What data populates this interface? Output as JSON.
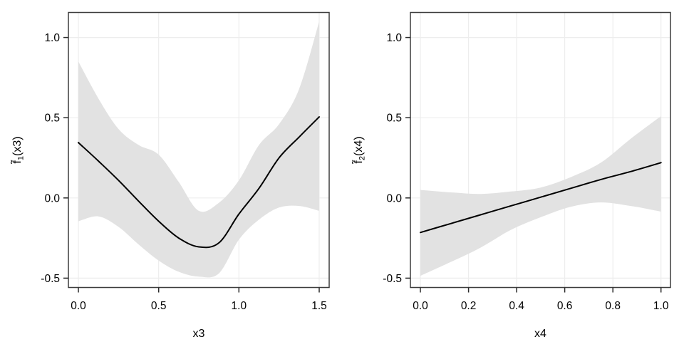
{
  "figure": {
    "background": "#ffffff",
    "band_color": "#e2e2e2",
    "grid_color": "#ededed",
    "frame_color": "#3d3d3d",
    "tick_color": "#2b2b2b",
    "line_color": "#000000",
    "text_color": "#000000"
  },
  "chart_data": [
    {
      "type": "line",
      "panel": "left",
      "title": "",
      "xlabel": "x3",
      "ylabel": {
        "base": "f̃",
        "sub": "1",
        "rest": "(x3)"
      },
      "grid": true,
      "legend": "none",
      "xlim": [
        -0.062,
        1.562
      ],
      "ylim": [
        -0.558,
        1.156
      ],
      "xticks": {
        "values": [
          0,
          0.5,
          1.0,
          1.5
        ],
        "labels": [
          "0.0",
          "0.5",
          "1.0",
          "1.5"
        ]
      },
      "yticks": {
        "values": [
          -0.5,
          0,
          0.5,
          1.0
        ],
        "labels": [
          "-0.5",
          "0.0",
          "0.5",
          "1.0"
        ]
      },
      "x": [
        0,
        0.125,
        0.25,
        0.375,
        0.5,
        0.625,
        0.75,
        0.875,
        1.0,
        1.125,
        1.25,
        1.375,
        1.5
      ],
      "series": [
        {
          "name": "estimate",
          "values": [
            0.345,
            0.23,
            0.11,
            -0.02,
            -0.145,
            -0.25,
            -0.305,
            -0.28,
            -0.1,
            0.06,
            0.25,
            0.38,
            0.505
          ]
        },
        {
          "name": "ci_upper",
          "values": [
            0.85,
            0.62,
            0.43,
            0.33,
            0.27,
            0.1,
            -0.08,
            -0.03,
            0.11,
            0.33,
            0.46,
            0.68,
            1.1
          ]
        },
        {
          "name": "ci_lower",
          "values": [
            -0.145,
            -0.115,
            -0.18,
            -0.29,
            -0.39,
            -0.46,
            -0.49,
            -0.47,
            -0.26,
            -0.135,
            -0.06,
            -0.05,
            -0.08
          ]
        }
      ]
    },
    {
      "type": "line",
      "panel": "right",
      "title": "",
      "xlabel": "x4",
      "ylabel": {
        "base": "f̃",
        "sub": "2",
        "rest": "(x4)"
      },
      "grid": true,
      "legend": "none",
      "xlim": [
        -0.0415,
        1.0394
      ],
      "ylim": [
        -0.558,
        1.156
      ],
      "xticks": {
        "values": [
          0,
          0.2,
          0.4,
          0.6,
          0.8,
          1.0
        ],
        "labels": [
          "0.0",
          "0.2",
          "0.4",
          "0.6",
          "0.8",
          "1.0"
        ]
      },
      "yticks": {
        "values": [
          -0.5,
          0,
          0.5,
          1.0
        ],
        "labels": [
          "-0.5",
          "0.0",
          "0.5",
          "1.0"
        ]
      },
      "x": [
        0,
        0.125,
        0.25,
        0.375,
        0.5,
        0.625,
        0.75,
        0.875,
        1.0
      ],
      "series": [
        {
          "name": "estimate",
          "values": [
            -0.215,
            -0.16,
            -0.105,
            -0.05,
            0.005,
            0.06,
            0.115,
            0.165,
            0.22
          ]
        },
        {
          "name": "ci_upper",
          "values": [
            0.05,
            0.035,
            0.025,
            0.04,
            0.065,
            0.13,
            0.22,
            0.37,
            0.51
          ]
        },
        {
          "name": "ci_lower",
          "values": [
            -0.485,
            -0.4,
            -0.31,
            -0.2,
            -0.12,
            -0.055,
            -0.028,
            -0.05,
            -0.085
          ]
        }
      ]
    }
  ]
}
